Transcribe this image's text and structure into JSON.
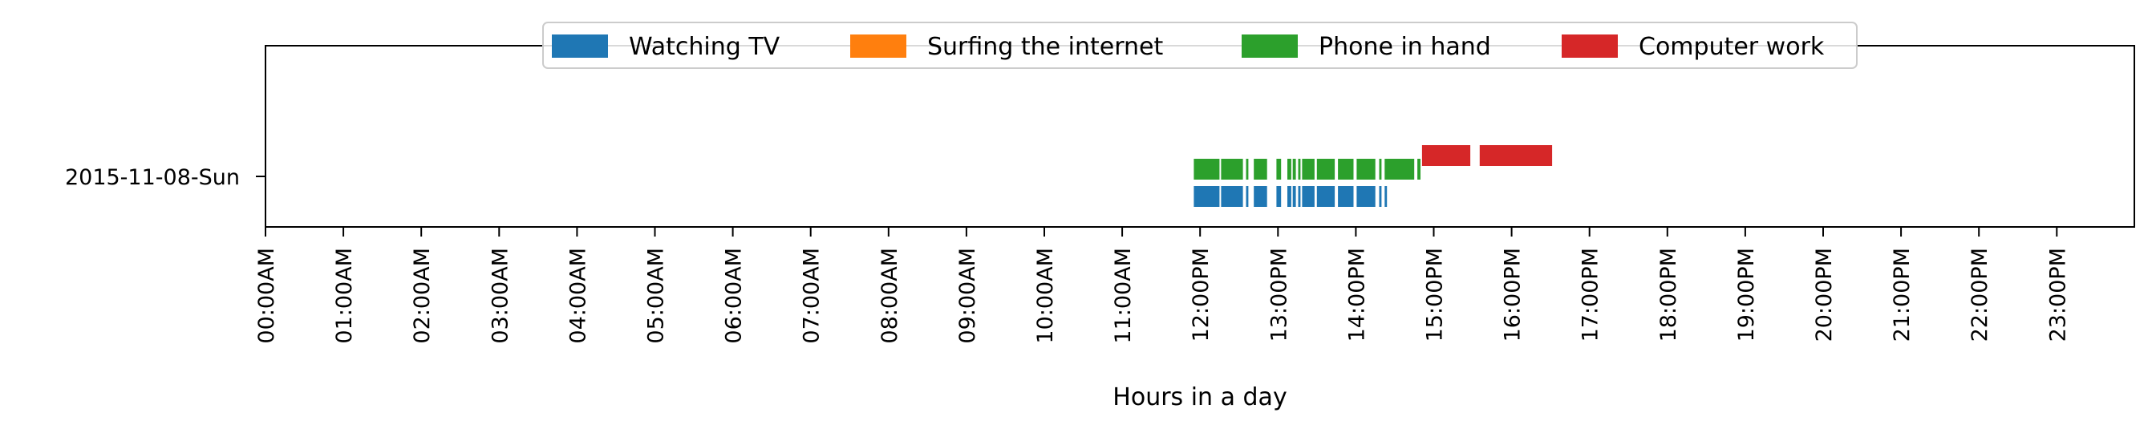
{
  "chart_data": {
    "type": "bar",
    "orientation": "horizontal-timeline",
    "title": "",
    "xlabel": "Hours in a day",
    "ylabel": "",
    "xlim": [
      0,
      24
    ],
    "x_ticks": [
      0,
      1,
      2,
      3,
      4,
      5,
      6,
      7,
      8,
      9,
      10,
      11,
      12,
      13,
      14,
      15,
      16,
      17,
      18,
      19,
      20,
      21,
      22,
      23
    ],
    "x_tick_labels": [
      "00:00AM",
      "01:00AM",
      "02:00AM",
      "03:00AM",
      "04:00AM",
      "05:00AM",
      "06:00AM",
      "07:00AM",
      "08:00AM",
      "09:00AM",
      "10:00AM",
      "11:00AM",
      "12:00PM",
      "13:00PM",
      "14:00PM",
      "15:00PM",
      "16:00PM",
      "17:00PM",
      "18:00PM",
      "19:00PM",
      "20:00PM",
      "21:00PM",
      "22:00PM",
      "23:00PM"
    ],
    "y_categories": [
      "2015-11-08-Sun"
    ],
    "grid": false,
    "legend_position": "top-center",
    "series": [
      {
        "name": "Watching TV",
        "color": "#1f77b4",
        "lane": 0,
        "intervals": [
          [
            11.92,
            12.25
          ],
          [
            12.27,
            12.55
          ],
          [
            12.59,
            12.62
          ],
          [
            12.69,
            12.86
          ],
          [
            12.98,
            13.04
          ],
          [
            13.12,
            13.17
          ],
          [
            13.19,
            13.23
          ],
          [
            13.26,
            13.29
          ],
          [
            13.31,
            13.47
          ],
          [
            13.5,
            13.73
          ],
          [
            13.77,
            13.97
          ],
          [
            14.01,
            14.25
          ],
          [
            14.3,
            14.33
          ],
          [
            14.37,
            14.4
          ]
        ]
      },
      {
        "name": "Surfing the internet",
        "color": "#ff7f0e",
        "lane": 1,
        "intervals": []
      },
      {
        "name": "Phone in hand",
        "color": "#2ca02c",
        "lane": 1,
        "intervals": [
          [
            11.92,
            12.25
          ],
          [
            12.27,
            12.55
          ],
          [
            12.59,
            12.62
          ],
          [
            12.69,
            12.86
          ],
          [
            12.98,
            13.04
          ],
          [
            13.12,
            13.17
          ],
          [
            13.19,
            13.23
          ],
          [
            13.26,
            13.29
          ],
          [
            13.31,
            13.47
          ],
          [
            13.5,
            13.73
          ],
          [
            13.77,
            13.97
          ],
          [
            14.01,
            14.25
          ],
          [
            14.3,
            14.33
          ],
          [
            14.37,
            14.75
          ],
          [
            14.79,
            14.83
          ]
        ]
      },
      {
        "name": "Computer work",
        "color": "#d62728",
        "lane": 2,
        "intervals": [
          [
            14.85,
            15.47
          ],
          [
            15.59,
            16.52
          ]
        ]
      }
    ]
  }
}
